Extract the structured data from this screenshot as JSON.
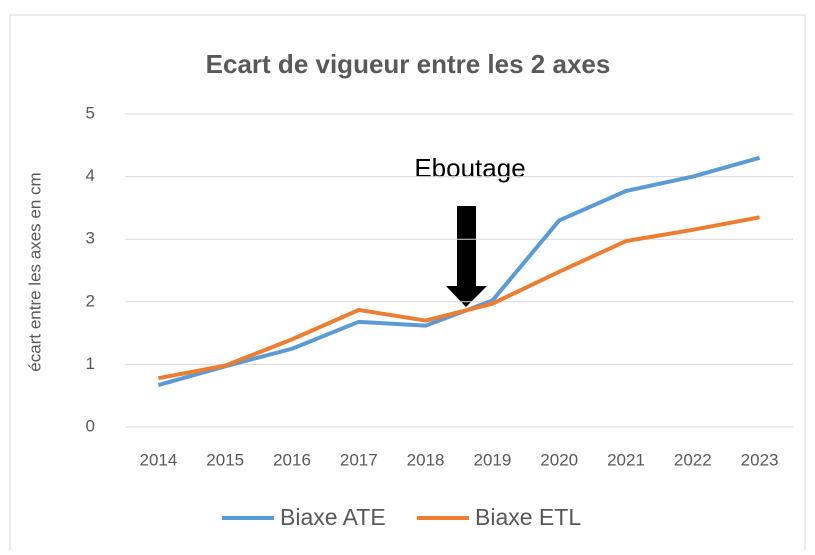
{
  "chart_data": {
    "type": "line",
    "title": "Ecart de vigueur entre les 2 axes",
    "y_label": "écart entre les axes en cm",
    "annotation": "Eboutage",
    "categories": [
      "2014",
      "2015",
      "2016",
      "2017",
      "2018",
      "2019",
      "2020",
      "2021",
      "2022",
      "2023"
    ],
    "series": [
      {
        "name": "Biaxe ATE",
        "color": "#5b9bd5",
        "values": [
          0.67,
          0.97,
          1.25,
          1.68,
          1.62,
          2.02,
          3.3,
          3.77,
          4.0,
          4.3
        ]
      },
      {
        "name": "Biaxe ETL",
        "color": "#ed7d31",
        "values": [
          0.78,
          0.98,
          1.4,
          1.87,
          1.7,
          1.97,
          2.48,
          2.97,
          3.15,
          3.35
        ]
      }
    ],
    "ylim": [
      0,
      5
    ],
    "yticks": [
      0,
      1,
      2,
      3,
      4,
      5
    ],
    "grid": true,
    "legend": "bottom"
  }
}
